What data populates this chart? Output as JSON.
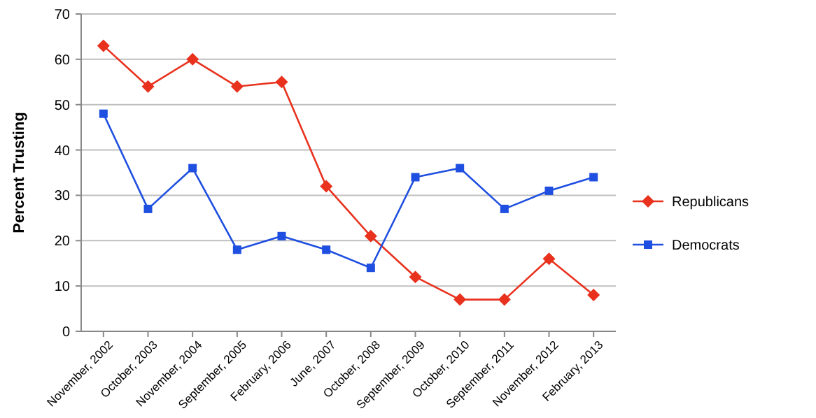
{
  "chart_data": {
    "type": "line",
    "ylabel": "Percent Trusting",
    "categories": [
      "November, 2002",
      "October, 2003",
      "November, 2004",
      "September, 2005",
      "February, 2006",
      "June, 2007",
      "October, 2008",
      "September, 2009",
      "October, 2010",
      "September, 2011",
      "November, 2012",
      "February, 2013"
    ],
    "series": [
      {
        "name": "Republicans",
        "color": "#e8321e",
        "marker": "diamond",
        "values": [
          63,
          54,
          60,
          54,
          55,
          32,
          21,
          12,
          7,
          7,
          16,
          8
        ]
      },
      {
        "name": "Democrats",
        "color": "#1f4fe0",
        "marker": "square",
        "values": [
          48,
          27,
          36,
          18,
          21,
          18,
          14,
          34,
          36,
          27,
          31,
          34
        ]
      }
    ],
    "ylim": [
      0,
      70
    ],
    "yticks": [
      0,
      10,
      20,
      30,
      40,
      50,
      60,
      70
    ],
    "grid": "y",
    "legend": "right"
  }
}
